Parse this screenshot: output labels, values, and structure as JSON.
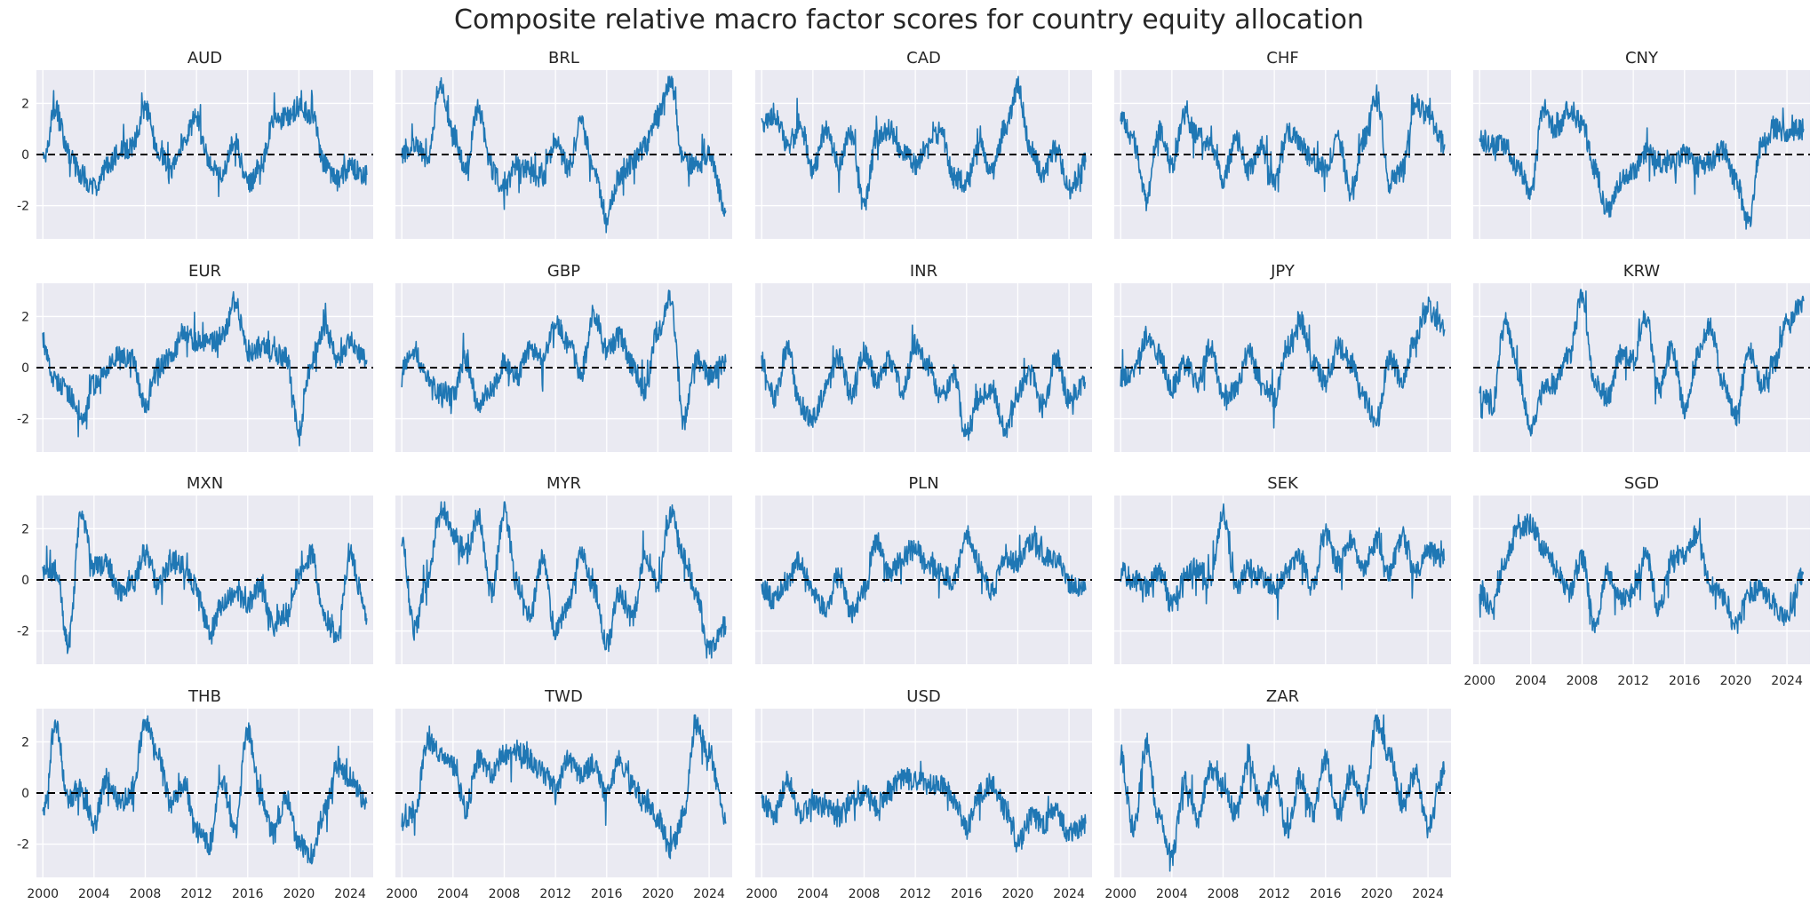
{
  "chart_data": {
    "type": "line",
    "title": "Composite relative macro factor scores for country equity allocation",
    "xlim": [
      1999.5,
      2025.8
    ],
    "ylim": [
      -3.3,
      3.3
    ],
    "xticks": [
      2000,
      2004,
      2008,
      2012,
      2016,
      2020,
      2024
    ],
    "yticks": [
      -2,
      0,
      2
    ],
    "reference_line": 0,
    "series_color": "#1f77b4",
    "grid": true,
    "panels": [
      {
        "name": "AUD",
        "x": [
          2000,
          2001,
          2002,
          2003,
          2004,
          2005,
          2006,
          2007,
          2008,
          2009,
          2010,
          2011,
          2012,
          2013,
          2014,
          2015,
          2016,
          2017,
          2018,
          2019,
          2020,
          2021,
          2022,
          2023,
          2024,
          2025.3
        ],
        "y": [
          -0.3,
          1.8,
          0.0,
          -0.8,
          -1.3,
          -0.5,
          0.1,
          0.3,
          1.8,
          0.2,
          -0.6,
          0.5,
          1.5,
          -0.3,
          -0.7,
          0.5,
          -1.2,
          -0.5,
          1.3,
          1.5,
          1.8,
          1.6,
          -0.4,
          -1.0,
          -0.5,
          -0.8
        ]
      },
      {
        "name": "BRL",
        "x": [
          2000,
          2001,
          2002,
          2003,
          2004,
          2005,
          2006,
          2007,
          2008,
          2009,
          2010,
          2011,
          2012,
          2013,
          2014,
          2015,
          2016,
          2017,
          2018,
          2019,
          2020,
          2021,
          2022,
          2023,
          2024,
          2025.3
        ],
        "y": [
          0.0,
          0.5,
          -0.3,
          2.8,
          0.8,
          -0.5,
          1.8,
          -0.6,
          -1.3,
          -0.4,
          -0.7,
          -0.9,
          0.5,
          -0.5,
          1.2,
          -0.6,
          -2.4,
          -0.9,
          -0.3,
          0.3,
          1.5,
          2.8,
          -0.2,
          -0.5,
          0.0,
          -2.2
        ]
      },
      {
        "name": "CAD",
        "x": [
          2000,
          2001,
          2002,
          2003,
          2004,
          2005,
          2006,
          2007,
          2008,
          2009,
          2010,
          2011,
          2012,
          2013,
          2014,
          2015,
          2016,
          2017,
          2018,
          2019,
          2020,
          2021,
          2022,
          2023,
          2024,
          2025.3
        ],
        "y": [
          1.2,
          1.6,
          0.4,
          1.2,
          -0.6,
          0.9,
          -0.3,
          0.8,
          -2.0,
          0.7,
          1.0,
          0.1,
          -0.4,
          0.4,
          0.9,
          -0.9,
          -1.1,
          0.4,
          -0.7,
          1.0,
          2.6,
          0.2,
          -0.8,
          0.3,
          -1.4,
          -0.3
        ]
      },
      {
        "name": "CHF",
        "x": [
          2000,
          2001,
          2002,
          2003,
          2004,
          2005,
          2006,
          2007,
          2008,
          2009,
          2010,
          2011,
          2012,
          2013,
          2014,
          2015,
          2016,
          2017,
          2018,
          2019,
          2020,
          2021,
          2022,
          2023,
          2024,
          2025.3
        ],
        "y": [
          1.6,
          0.5,
          -1.8,
          1.0,
          -0.4,
          1.5,
          0.8,
          0.4,
          -1.0,
          0.6,
          -0.6,
          0.3,
          -1.1,
          0.9,
          0.5,
          -0.3,
          -0.5,
          0.6,
          -1.6,
          0.6,
          2.3,
          -1.1,
          -0.6,
          2.0,
          1.5,
          0.4
        ]
      },
      {
        "name": "CNY",
        "x": [
          2000,
          2001,
          2002,
          2003,
          2004,
          2005,
          2006,
          2007,
          2008,
          2009,
          2010,
          2011,
          2012,
          2013,
          2014,
          2015,
          2016,
          2017,
          2018,
          2019,
          2020,
          2021,
          2022,
          2023,
          2024,
          2025.3
        ],
        "y": [
          0.6,
          0.4,
          0.3,
          -0.6,
          -1.5,
          1.8,
          0.9,
          1.8,
          1.2,
          -0.6,
          -2.2,
          -1.0,
          -0.6,
          0.1,
          -0.3,
          -0.4,
          0.0,
          -0.5,
          -0.3,
          0.2,
          -1.0,
          -2.7,
          0.4,
          1.0,
          0.9,
          1.0
        ]
      },
      {
        "name": "EUR",
        "x": [
          2000,
          2001,
          2002,
          2003,
          2004,
          2005,
          2006,
          2007,
          2008,
          2009,
          2010,
          2011,
          2012,
          2013,
          2014,
          2015,
          2016,
          2017,
          2018,
          2019,
          2020,
          2021,
          2022,
          2023,
          2024,
          2025.3
        ],
        "y": [
          1.0,
          -0.5,
          -1.0,
          -2.1,
          -0.6,
          0.0,
          0.5,
          0.3,
          -1.5,
          0.0,
          0.4,
          1.4,
          1.0,
          0.9,
          1.2,
          2.6,
          0.6,
          0.8,
          0.6,
          0.4,
          -2.5,
          0.2,
          1.6,
          0.4,
          1.0,
          0.3
        ]
      },
      {
        "name": "GBP",
        "x": [
          2000,
          2001,
          2002,
          2003,
          2004,
          2005,
          2006,
          2007,
          2008,
          2009,
          2010,
          2011,
          2012,
          2013,
          2014,
          2015,
          2016,
          2017,
          2018,
          2019,
          2020,
          2021,
          2022,
          2023,
          2024,
          2025.3
        ],
        "y": [
          0.0,
          0.7,
          -0.5,
          -1.0,
          -1.1,
          0.3,
          -1.4,
          -0.8,
          0.2,
          -0.4,
          0.8,
          0.3,
          1.8,
          0.9,
          -0.2,
          2.1,
          0.7,
          1.2,
          0.1,
          -0.9,
          1.5,
          2.7,
          -2.1,
          0.3,
          -0.3,
          0.2
        ]
      },
      {
        "name": "INR",
        "x": [
          2000,
          2001,
          2002,
          2003,
          2004,
          2005,
          2006,
          2007,
          2008,
          2009,
          2010,
          2011,
          2012,
          2013,
          2014,
          2015,
          2016,
          2017,
          2018,
          2019,
          2020,
          2021,
          2022,
          2023,
          2024,
          2025.3
        ],
        "y": [
          0.3,
          -1.2,
          0.8,
          -1.5,
          -2.0,
          -0.8,
          0.4,
          -1.0,
          0.6,
          -0.5,
          0.3,
          -0.9,
          0.9,
          0.1,
          -1.2,
          -0.3,
          -2.6,
          -1.2,
          -0.8,
          -2.4,
          -1.0,
          -0.3,
          -1.4,
          0.4,
          -1.2,
          -0.6
        ]
      },
      {
        "name": "JPY",
        "x": [
          2000,
          2001,
          2002,
          2003,
          2004,
          2005,
          2006,
          2007,
          2008,
          2009,
          2010,
          2011,
          2012,
          2013,
          2014,
          2015,
          2016,
          2017,
          2018,
          2019,
          2020,
          2021,
          2022,
          2023,
          2024,
          2025.3
        ],
        "y": [
          -0.4,
          -0.2,
          1.2,
          0.5,
          -0.8,
          0.2,
          -0.6,
          0.8,
          -1.1,
          -0.9,
          0.6,
          -0.5,
          -1.2,
          0.8,
          1.9,
          0.2,
          -0.6,
          0.8,
          0.2,
          -1.2,
          -2.2,
          0.4,
          -0.5,
          1.1,
          2.3,
          1.5
        ]
      },
      {
        "name": "KRW",
        "x": [
          2000,
          2001,
          2002,
          2003,
          2004,
          2005,
          2006,
          2007,
          2008,
          2009,
          2010,
          2011,
          2012,
          2013,
          2014,
          2015,
          2016,
          2017,
          2018,
          2019,
          2020,
          2021,
          2022,
          2023,
          2024,
          2025.3
        ],
        "y": [
          -1.0,
          -1.5,
          1.9,
          -0.2,
          -2.3,
          -0.9,
          -0.5,
          0.5,
          2.8,
          -0.6,
          -1.2,
          0.5,
          0.3,
          2.0,
          -0.9,
          0.8,
          -1.6,
          0.4,
          1.6,
          -0.5,
          -1.9,
          0.7,
          -0.7,
          0.2,
          1.8,
          2.6
        ]
      },
      {
        "name": "MXN",
        "x": [
          2000,
          2001,
          2002,
          2003,
          2004,
          2005,
          2006,
          2007,
          2008,
          2009,
          2010,
          2011,
          2012,
          2013,
          2014,
          2015,
          2016,
          2017,
          2018,
          2019,
          2020,
          2021,
          2022,
          2023,
          2024,
          2025.3
        ],
        "y": [
          0.2,
          0.4,
          -2.5,
          2.6,
          0.5,
          0.6,
          -0.5,
          -0.2,
          1.1,
          -0.2,
          0.7,
          0.5,
          -0.3,
          -2.0,
          -1.0,
          -0.5,
          -0.9,
          -0.2,
          -1.8,
          -1.3,
          0.2,
          1.0,
          -1.5,
          -2.2,
          1.0,
          -1.5
        ]
      },
      {
        "name": "MYR",
        "x": [
          2000,
          2001,
          2002,
          2003,
          2004,
          2005,
          2006,
          2007,
          2008,
          2009,
          2010,
          2011,
          2012,
          2013,
          2014,
          2015,
          2016,
          2017,
          2018,
          2019,
          2020,
          2021,
          2022,
          2023,
          2024,
          2025.3
        ],
        "y": [
          1.5,
          -2.0,
          0.0,
          2.8,
          1.8,
          1.0,
          2.5,
          -0.5,
          2.7,
          -0.2,
          -1.4,
          0.8,
          -2.0,
          -1.0,
          1.2,
          -0.3,
          -2.5,
          -0.5,
          -1.5,
          1.0,
          -0.2,
          2.6,
          1.0,
          -0.5,
          -2.8,
          -1.8
        ]
      },
      {
        "name": "PLN",
        "x": [
          2000,
          2001,
          2002,
          2003,
          2004,
          2005,
          2006,
          2007,
          2008,
          2009,
          2010,
          2011,
          2012,
          2013,
          2014,
          2015,
          2016,
          2017,
          2018,
          2019,
          2020,
          2021,
          2022,
          2023,
          2024,
          2025.3
        ],
        "y": [
          -0.3,
          -0.8,
          0.0,
          0.8,
          -0.5,
          -1.2,
          0.2,
          -1.3,
          -0.4,
          1.5,
          0.2,
          0.9,
          1.2,
          0.5,
          0.3,
          -0.1,
          1.8,
          0.6,
          -0.5,
          0.9,
          0.7,
          1.5,
          1.0,
          0.8,
          -0.2,
          -0.4
        ]
      },
      {
        "name": "SEK",
        "x": [
          2000,
          2001,
          2002,
          2003,
          2004,
          2005,
          2006,
          2007,
          2008,
          2009,
          2010,
          2011,
          2012,
          2013,
          2014,
          2015,
          2016,
          2017,
          2018,
          2019,
          2020,
          2021,
          2022,
          2023,
          2024,
          2025.3
        ],
        "y": [
          0.3,
          0.0,
          -0.3,
          0.3,
          -1.0,
          0.2,
          0.5,
          0.0,
          2.5,
          -0.3,
          0.4,
          0.1,
          -0.5,
          0.3,
          1.0,
          -0.3,
          1.8,
          0.6,
          1.4,
          0.5,
          1.5,
          0.2,
          1.7,
          0.2,
          1.2,
          0.8
        ]
      },
      {
        "name": "SGD",
        "x": [
          2000,
          2001,
          2002,
          2003,
          2004,
          2005,
          2006,
          2007,
          2008,
          2009,
          2010,
          2011,
          2012,
          2013,
          2014,
          2015,
          2016,
          2017,
          2018,
          2019,
          2020,
          2021,
          2022,
          2023,
          2024,
          2025.3
        ],
        "y": [
          -0.5,
          -1.2,
          0.8,
          2.0,
          2.2,
          1.2,
          0.5,
          -0.5,
          0.8,
          -1.9,
          0.3,
          -0.8,
          -0.4,
          1.0,
          -1.2,
          0.8,
          1.0,
          1.8,
          -0.2,
          -0.6,
          -1.8,
          -0.5,
          -0.3,
          -1.0,
          -1.5,
          0.3
        ]
      },
      {
        "name": "THB",
        "x": [
          2000,
          2001,
          2002,
          2003,
          2004,
          2005,
          2006,
          2007,
          2008,
          2009,
          2010,
          2011,
          2012,
          2013,
          2014,
          2015,
          2016,
          2017,
          2018,
          2019,
          2020,
          2021,
          2022,
          2023,
          2024,
          2025.3
        ],
        "y": [
          -1.0,
          2.8,
          -0.3,
          0.2,
          -1.2,
          0.6,
          -0.4,
          0.1,
          2.8,
          1.4,
          -0.4,
          0.3,
          -1.5,
          -2.0,
          0.5,
          -1.6,
          2.5,
          -0.1,
          -1.6,
          -0.2,
          -2.0,
          -2.4,
          -0.7,
          1.0,
          0.5,
          -0.4
        ]
      },
      {
        "name": "TWD",
        "x": [
          2000,
          2001,
          2002,
          2003,
          2004,
          2005,
          2006,
          2007,
          2008,
          2009,
          2010,
          2011,
          2012,
          2013,
          2014,
          2015,
          2016,
          2017,
          2018,
          2019,
          2020,
          2021,
          2022,
          2023,
          2024,
          2025.3
        ],
        "y": [
          -1.1,
          -0.8,
          2.0,
          1.5,
          1.1,
          -0.6,
          1.3,
          0.8,
          1.5,
          1.7,
          1.3,
          0.8,
          0.2,
          1.3,
          0.7,
          1.2,
          -0.1,
          1.3,
          0.3,
          -0.4,
          -1.0,
          -2.2,
          -0.9,
          2.8,
          1.6,
          -1.2
        ]
      },
      {
        "name": "USD",
        "x": [
          2000,
          2001,
          2002,
          2003,
          2004,
          2005,
          2006,
          2007,
          2008,
          2009,
          2010,
          2011,
          2012,
          2013,
          2014,
          2015,
          2016,
          2017,
          2018,
          2019,
          2020,
          2021,
          2022,
          2023,
          2024,
          2025.3
        ],
        "y": [
          -0.3,
          -0.9,
          0.5,
          -0.8,
          -0.4,
          -0.6,
          -0.9,
          -0.3,
          -0.1,
          -0.5,
          0.1,
          0.6,
          0.5,
          0.3,
          0.4,
          -0.2,
          -1.4,
          0.0,
          0.4,
          -0.6,
          -2.0,
          -0.9,
          -1.2,
          -0.6,
          -1.6,
          -1.2
        ]
      },
      {
        "name": "ZAR",
        "x": [
          2000,
          2001,
          2002,
          2003,
          2004,
          2005,
          2006,
          2007,
          2008,
          2009,
          2010,
          2011,
          2012,
          2013,
          2014,
          2015,
          2016,
          2017,
          2018,
          2019,
          2020,
          2021,
          2022,
          2023,
          2024,
          2025.3
        ],
        "y": [
          1.5,
          -1.5,
          1.8,
          -1.0,
          -2.5,
          0.5,
          -1.0,
          1.0,
          0.2,
          -0.8,
          1.2,
          -0.4,
          0.8,
          -1.5,
          0.6,
          -0.8,
          1.3,
          -0.9,
          0.7,
          -0.4,
          2.8,
          1.5,
          -0.5,
          0.8,
          -1.4,
          0.9
        ]
      }
    ]
  }
}
